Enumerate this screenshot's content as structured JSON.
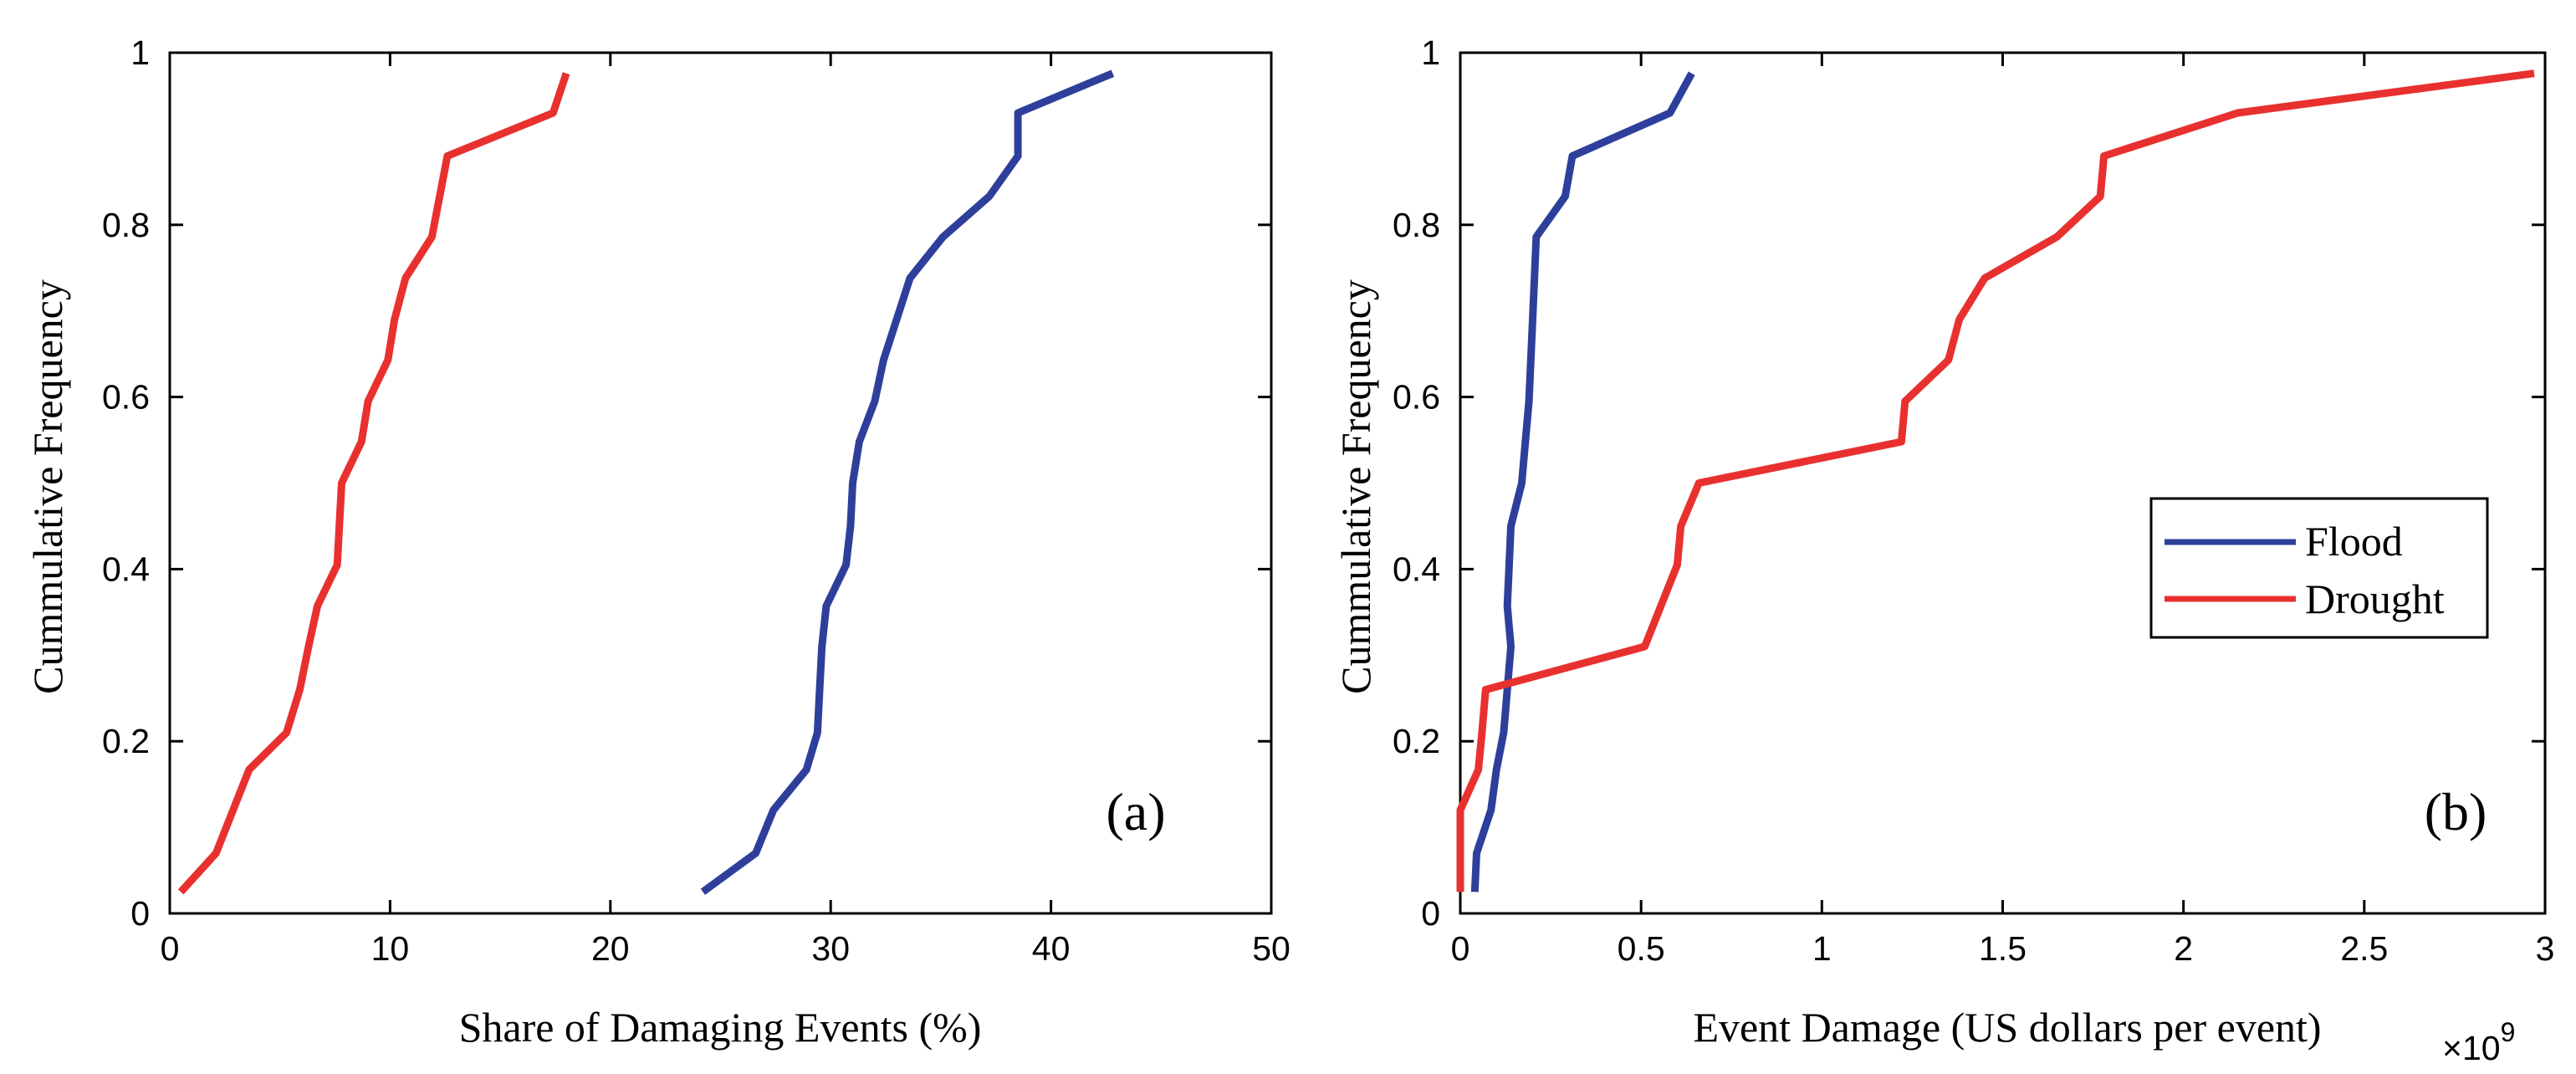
{
  "chart_data": [
    {
      "type": "line",
      "panel_label": "(a)",
      "xlabel": "Share of Damaging Events (%)",
      "ylabel": "Cummulative Frequency",
      "xlim": [
        0,
        50
      ],
      "ylim": [
        0,
        1
      ],
      "xticks": [
        0,
        10,
        20,
        30,
        40,
        50
      ],
      "yticks": [
        0,
        0.2,
        0.4,
        0.6,
        0.8,
        1
      ],
      "xtick_labels": [
        "0",
        "10",
        "20",
        "30",
        "40",
        "50"
      ],
      "ytick_labels": [
        "0",
        "0.2",
        "0.4",
        "0.6",
        "0.8",
        "1"
      ],
      "grid": false,
      "series": [
        {
          "name": "Flood",
          "color": "#2e3f9b",
          "points": [
            [
              24.2,
              0.025
            ],
            [
              26.6,
              0.07
            ],
            [
              27.4,
              0.12
            ],
            [
              28.9,
              0.167
            ],
            [
              29.4,
              0.21
            ],
            [
              29.5,
              0.26
            ],
            [
              29.6,
              0.31
            ],
            [
              29.8,
              0.357
            ],
            [
              30.7,
              0.405
            ],
            [
              30.9,
              0.45
            ],
            [
              31.0,
              0.5
            ],
            [
              31.3,
              0.548
            ],
            [
              32.0,
              0.595
            ],
            [
              32.4,
              0.643
            ],
            [
              33.6,
              0.738
            ],
            [
              35.1,
              0.786
            ],
            [
              37.2,
              0.833
            ],
            [
              38.5,
              0.88
            ],
            [
              38.5,
              0.93
            ],
            [
              42.8,
              0.976
            ]
          ]
        },
        {
          "name": "Drought",
          "color": "#e8312f",
          "points": [
            [
              0.5,
              0.025
            ],
            [
              2.1,
              0.07
            ],
            [
              3.6,
              0.167
            ],
            [
              5.3,
              0.21
            ],
            [
              5.9,
              0.26
            ],
            [
              6.3,
              0.31
            ],
            [
              6.7,
              0.357
            ],
            [
              7.6,
              0.405
            ],
            [
              7.8,
              0.5
            ],
            [
              8.7,
              0.548
            ],
            [
              9.0,
              0.595
            ],
            [
              9.9,
              0.643
            ],
            [
              10.2,
              0.69
            ],
            [
              10.7,
              0.738
            ],
            [
              11.9,
              0.786
            ],
            [
              12.6,
              0.88
            ],
            [
              17.4,
              0.93
            ],
            [
              18.0,
              0.976
            ]
          ]
        }
      ]
    },
    {
      "type": "line",
      "panel_label": "(b)",
      "xlabel": "Event Damage (US dollars per event)",
      "ylabel": "Cummulative Frequency",
      "x_multiplier": "×10",
      "x_multiplier_exponent": "9",
      "xlim": [
        0,
        3
      ],
      "ylim": [
        0,
        1
      ],
      "xticks": [
        0,
        0.5,
        1,
        1.5,
        2,
        2.5,
        3
      ],
      "yticks": [
        0,
        0.2,
        0.4,
        0.6,
        0.8,
        1
      ],
      "xtick_labels": [
        "0",
        "0.5",
        "1",
        "1.5",
        "2",
        "2.5",
        "3"
      ],
      "ytick_labels": [
        "0",
        "0.2",
        "0.4",
        "0.6",
        "0.8",
        "1"
      ],
      "grid": false,
      "legend": {
        "position": "right-middle",
        "entries": [
          "Flood",
          "Drought"
        ]
      },
      "series": [
        {
          "name": "Flood",
          "color": "#2e3f9b",
          "points": [
            [
              0.04,
              0.025
            ],
            [
              0.045,
              0.07
            ],
            [
              0.085,
              0.12
            ],
            [
              0.1,
              0.167
            ],
            [
              0.12,
              0.21
            ],
            [
              0.14,
              0.31
            ],
            [
              0.13,
              0.357
            ],
            [
              0.14,
              0.45
            ],
            [
              0.17,
              0.5
            ],
            [
              0.18,
              0.548
            ],
            [
              0.19,
              0.595
            ],
            [
              0.2,
              0.69
            ],
            [
              0.21,
              0.786
            ],
            [
              0.29,
              0.833
            ],
            [
              0.31,
              0.88
            ],
            [
              0.58,
              0.93
            ],
            [
              0.64,
              0.976
            ]
          ]
        },
        {
          "name": "Drought",
          "color": "#e8312f",
          "points": [
            [
              0.0,
              0.025
            ],
            [
              0.0,
              0.12
            ],
            [
              0.05,
              0.167
            ],
            [
              0.06,
              0.21
            ],
            [
              0.07,
              0.26
            ],
            [
              0.51,
              0.31
            ],
            [
              0.6,
              0.405
            ],
            [
              0.61,
              0.45
            ],
            [
              0.66,
              0.5
            ],
            [
              1.22,
              0.548
            ],
            [
              1.23,
              0.595
            ],
            [
              1.35,
              0.643
            ],
            [
              1.38,
              0.69
            ],
            [
              1.45,
              0.738
            ],
            [
              1.65,
              0.786
            ],
            [
              1.77,
              0.833
            ],
            [
              1.78,
              0.88
            ],
            [
              2.15,
              0.93
            ],
            [
              2.97,
              0.976
            ]
          ]
        }
      ]
    }
  ]
}
